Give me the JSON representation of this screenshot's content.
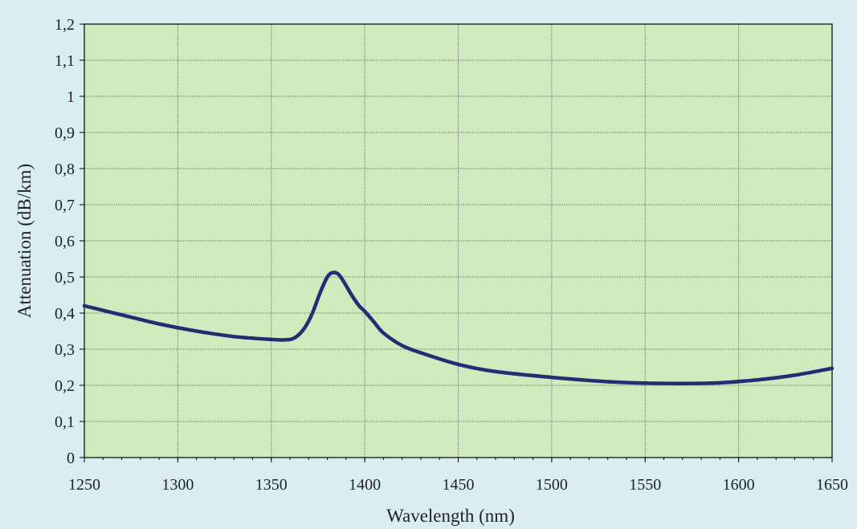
{
  "chart_data": {
    "type": "line",
    "title": "",
    "xlabel": "Wavelength (nm)",
    "ylabel": "Attenuation (dB/km)",
    "xlim": [
      1250,
      1650
    ],
    "ylim": [
      0,
      1.2
    ],
    "grid": true,
    "legend": "none",
    "x_ticks": [
      1250,
      1300,
      1350,
      1400,
      1450,
      1500,
      1550,
      1600,
      1650
    ],
    "x_tick_labels": [
      "1250",
      "1300",
      "1350",
      "1400",
      "1450",
      "1500",
      "1550",
      "1600",
      "1650"
    ],
    "y_ticks": [
      0,
      0.1,
      0.2,
      0.3,
      0.4,
      0.5,
      0.6,
      0.7,
      0.8,
      0.9,
      1.0,
      1.1,
      1.2
    ],
    "y_tick_labels": [
      "0",
      "0,1",
      "0,2",
      "0,3",
      "0,4",
      "0,5",
      "0,6",
      "0,7",
      "0,8",
      "0,9",
      "1",
      "1,1",
      "1,2"
    ],
    "series": [
      {
        "x": [
          1250,
          1270,
          1290,
          1310,
          1330,
          1350,
          1358,
          1363,
          1368,
          1372,
          1376,
          1380,
          1383,
          1386,
          1389,
          1393,
          1397,
          1400,
          1405,
          1410,
          1420,
          1430,
          1450,
          1470,
          1500,
          1530,
          1550,
          1570,
          1590,
          1610,
          1630,
          1650
        ],
        "y": [
          0.42,
          0.395,
          0.37,
          0.35,
          0.335,
          0.327,
          0.326,
          0.333,
          0.36,
          0.4,
          0.455,
          0.5,
          0.512,
          0.507,
          0.485,
          0.45,
          0.42,
          0.405,
          0.375,
          0.345,
          0.31,
          0.29,
          0.258,
          0.238,
          0.222,
          0.21,
          0.206,
          0.205,
          0.207,
          0.215,
          0.228,
          0.247
        ]
      }
    ]
  },
  "colors": {
    "background": "#daeef2",
    "plot_area": "#d0eabe",
    "line": "#262b74",
    "grid": "#8a8a8a",
    "axis": "#000000"
  }
}
